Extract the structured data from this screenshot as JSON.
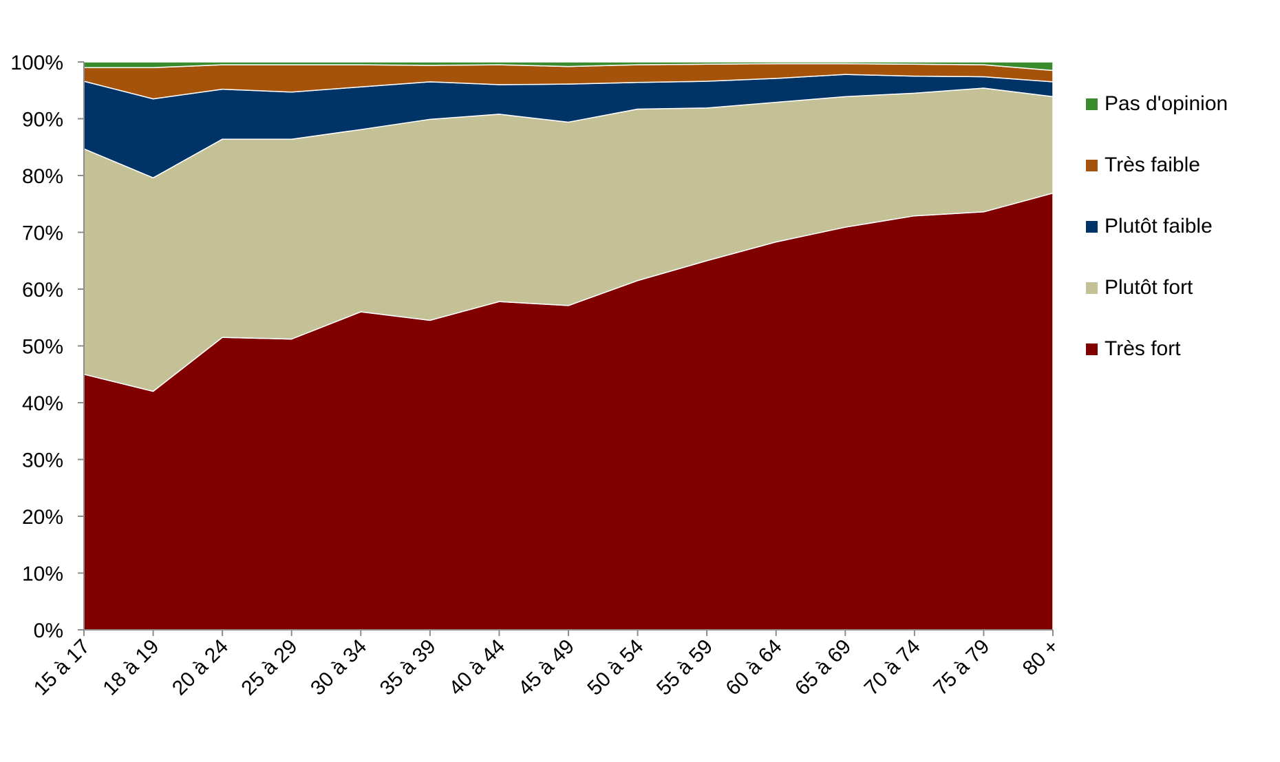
{
  "chart_data": {
    "type": "area",
    "stacked": true,
    "title": "",
    "xlabel": "",
    "ylabel": "",
    "ylim": [
      0,
      100
    ],
    "y_ticks": [
      "0%",
      "10%",
      "20%",
      "30%",
      "40%",
      "50%",
      "60%",
      "70%",
      "80%",
      "90%",
      "100%"
    ],
    "categories": [
      "15 à 17",
      "18 à 19",
      "20 à 24",
      "25 à 29",
      "30 à 34",
      "35 à 39",
      "40 à 44",
      "45 à 49",
      "50 à 54",
      "55 à 59",
      "60 à 64",
      "65 à 69",
      "70 à 74",
      "75 à 79",
      "80 +"
    ],
    "legend_position": "right",
    "grid": false,
    "series": [
      {
        "name": "Très fort",
        "color": "#800000",
        "values": [
          45.0,
          42.0,
          51.5,
          51.2,
          56.0,
          54.5,
          57.8,
          57.1,
          61.5,
          65.0,
          68.3,
          70.9,
          72.9,
          73.6,
          76.9
        ]
      },
      {
        "name": "Plutôt fort",
        "color": "#C4C197",
        "values": [
          39.7,
          37.6,
          34.9,
          35.2,
          32.1,
          35.4,
          33.0,
          32.3,
          30.2,
          26.9,
          24.6,
          23.0,
          21.6,
          21.8,
          17.0
        ]
      },
      {
        "name": "Plutôt faible",
        "color": "#003366",
        "values": [
          11.9,
          13.9,
          8.8,
          8.3,
          7.5,
          6.6,
          5.2,
          6.7,
          4.7,
          4.7,
          4.2,
          3.9,
          3.0,
          2.0,
          2.6
        ]
      },
      {
        "name": "Très faible",
        "color": "#A5520A",
        "values": [
          2.4,
          5.5,
          4.3,
          4.8,
          3.9,
          2.9,
          3.5,
          3.1,
          3.1,
          3.0,
          2.6,
          1.9,
          2.1,
          2.1,
          2.0
        ]
      },
      {
        "name": "Pas d'opinion",
        "color": "#3A8A2E",
        "values": [
          1.0,
          1.0,
          0.5,
          0.5,
          0.5,
          0.6,
          0.5,
          0.8,
          0.5,
          0.4,
          0.3,
          0.3,
          0.4,
          0.5,
          1.5
        ]
      }
    ],
    "legend_order": [
      "Pas d'opinion",
      "Très faible",
      "Plutôt faible",
      "Plutôt fort",
      "Très fort"
    ]
  }
}
